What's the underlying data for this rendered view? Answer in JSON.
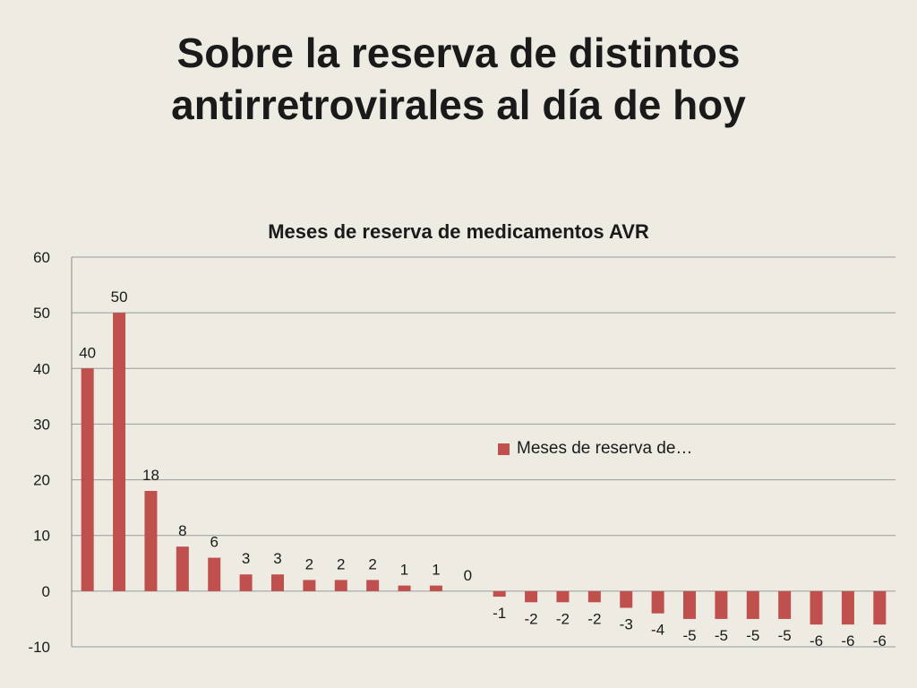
{
  "slide": {
    "title_line1": "Sobre la reserva de distintos",
    "title_line2": "antirretrovirales al día de hoy"
  },
  "chart_data": {
    "type": "bar",
    "title": "Meses de reserva de medicamentos AVR",
    "xlabel": "",
    "ylabel": "",
    "ylim": [
      -10,
      60
    ],
    "yticks": [
      -10,
      0,
      10,
      20,
      30,
      40,
      50,
      60
    ],
    "grid": true,
    "legend_position": "right",
    "bar_color": "#c0504d",
    "series": [
      {
        "name": "Meses de reserva de…",
        "values": [
          40,
          50,
          18,
          8,
          6,
          3,
          3,
          2,
          2,
          2,
          1,
          1,
          0,
          -1,
          -2,
          -2,
          -2,
          -3,
          -4,
          -5,
          -5,
          -5,
          -5,
          -6,
          -6,
          -6
        ]
      }
    ]
  }
}
